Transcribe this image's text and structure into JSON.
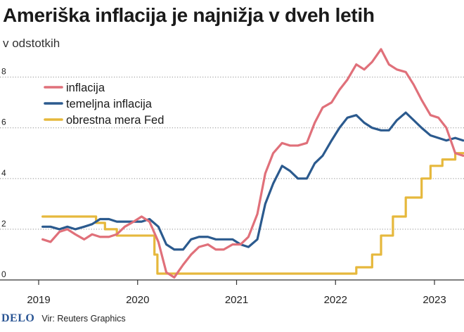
{
  "title": "Ameriška inflacija je najnižja v dveh letih",
  "subtitle": "v odstotkih",
  "footer": {
    "logo": "DELO",
    "source": "Vir: Reuters Graphics"
  },
  "chart_data": {
    "type": "line",
    "xlim": [
      2019.0,
      2023.3
    ],
    "ylim": [
      0,
      8.6
    ],
    "y_ticks": [
      {
        "value": 0,
        "label": "0"
      },
      {
        "value": 2,
        "label": "2"
      },
      {
        "value": 4,
        "label": "4"
      },
      {
        "value": 6,
        "label": "6"
      },
      {
        "value": 8,
        "label": "8"
      }
    ],
    "x_ticks": [
      {
        "value": 2019,
        "label": "2019"
      },
      {
        "value": 2020,
        "label": "2020"
      },
      {
        "value": 2021,
        "label": "2021"
      },
      {
        "value": 2022,
        "label": "2022"
      },
      {
        "value": 2023,
        "label": "2023"
      }
    ],
    "grid": "horizontal",
    "legend_position": "top-left",
    "series": [
      {
        "name": "inflacija",
        "color": "#e0707a",
        "step": false,
        "x": [
          2019.04,
          2019.12,
          2019.21,
          2019.29,
          2019.37,
          2019.46,
          2019.54,
          2019.62,
          2019.71,
          2019.79,
          2019.87,
          2019.96,
          2020.04,
          2020.12,
          2020.21,
          2020.29,
          2020.37,
          2020.46,
          2020.54,
          2020.62,
          2020.71,
          2020.79,
          2020.87,
          2020.96,
          2021.04,
          2021.12,
          2021.21,
          2021.29,
          2021.37,
          2021.46,
          2021.54,
          2021.62,
          2021.71,
          2021.79,
          2021.87,
          2021.96,
          2022.04,
          2022.12,
          2022.21,
          2022.29,
          2022.37,
          2022.46,
          2022.54,
          2022.62,
          2022.71,
          2022.79,
          2022.87,
          2022.96,
          2023.04,
          2023.12,
          2023.21,
          2023.29
        ],
        "y": [
          1.6,
          1.5,
          1.9,
          2.0,
          1.8,
          1.6,
          1.8,
          1.7,
          1.7,
          1.8,
          2.1,
          2.3,
          2.5,
          2.3,
          1.5,
          0.3,
          0.1,
          0.6,
          1.0,
          1.3,
          1.4,
          1.2,
          1.2,
          1.4,
          1.4,
          1.7,
          2.6,
          4.2,
          5.0,
          5.4,
          5.3,
          5.3,
          5.4,
          6.2,
          6.8,
          7.0,
          7.5,
          7.9,
          8.5,
          8.3,
          8.6,
          9.1,
          8.5,
          8.3,
          8.2,
          7.7,
          7.1,
          6.5,
          6.4,
          6.0,
          5.0,
          4.9
        ]
      },
      {
        "name": "temeljna inflacija",
        "color": "#2b5a8e",
        "step": false,
        "x": [
          2019.04,
          2019.12,
          2019.21,
          2019.29,
          2019.37,
          2019.46,
          2019.54,
          2019.62,
          2019.71,
          2019.79,
          2019.87,
          2019.96,
          2020.04,
          2020.12,
          2020.21,
          2020.29,
          2020.37,
          2020.46,
          2020.54,
          2020.62,
          2020.71,
          2020.79,
          2020.87,
          2020.96,
          2021.04,
          2021.12,
          2021.21,
          2021.29,
          2021.37,
          2021.46,
          2021.54,
          2021.62,
          2021.71,
          2021.79,
          2021.87,
          2021.96,
          2022.04,
          2022.12,
          2022.21,
          2022.29,
          2022.37,
          2022.46,
          2022.54,
          2022.62,
          2022.71,
          2022.79,
          2022.87,
          2022.96,
          2023.04,
          2023.12,
          2023.21,
          2023.29
        ],
        "y": [
          2.1,
          2.1,
          2.0,
          2.1,
          2.0,
          2.1,
          2.2,
          2.4,
          2.4,
          2.3,
          2.3,
          2.3,
          2.3,
          2.4,
          2.1,
          1.4,
          1.2,
          1.2,
          1.6,
          1.7,
          1.7,
          1.6,
          1.6,
          1.6,
          1.4,
          1.3,
          1.6,
          3.0,
          3.8,
          4.5,
          4.3,
          4.0,
          4.0,
          4.6,
          4.9,
          5.5,
          6.0,
          6.4,
          6.5,
          6.2,
          6.0,
          5.9,
          5.9,
          6.3,
          6.6,
          6.3,
          6.0,
          5.7,
          5.6,
          5.5,
          5.6,
          5.5
        ]
      },
      {
        "name": "obrestna mera Fed",
        "color": "#e6b83c",
        "step": true,
        "x": [
          2019.04,
          2019.58,
          2019.67,
          2019.79,
          2020.17,
          2020.2,
          2022.21,
          2022.37,
          2022.46,
          2022.58,
          2022.71,
          2022.87,
          2022.96,
          2023.08,
          2023.21,
          2023.3
        ],
        "y": [
          2.5,
          2.25,
          2.0,
          1.75,
          1.0,
          0.25,
          0.5,
          1.0,
          1.75,
          2.5,
          3.25,
          4.0,
          4.5,
          4.75,
          5.0,
          5.0
        ]
      }
    ]
  }
}
